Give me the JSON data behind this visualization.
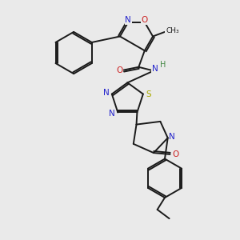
{
  "background_color": "#eaeaea",
  "bond_color": "#1a1a1a",
  "colors": {
    "N": "#2222cc",
    "O": "#cc2222",
    "S": "#aaaa00",
    "H": "#448844",
    "C": "#1a1a1a"
  },
  "layout": {
    "xlim": [
      0,
      3
    ],
    "ylim": [
      0,
      3.2
    ],
    "figsize": [
      3.0,
      3.0
    ],
    "dpi": 100
  }
}
